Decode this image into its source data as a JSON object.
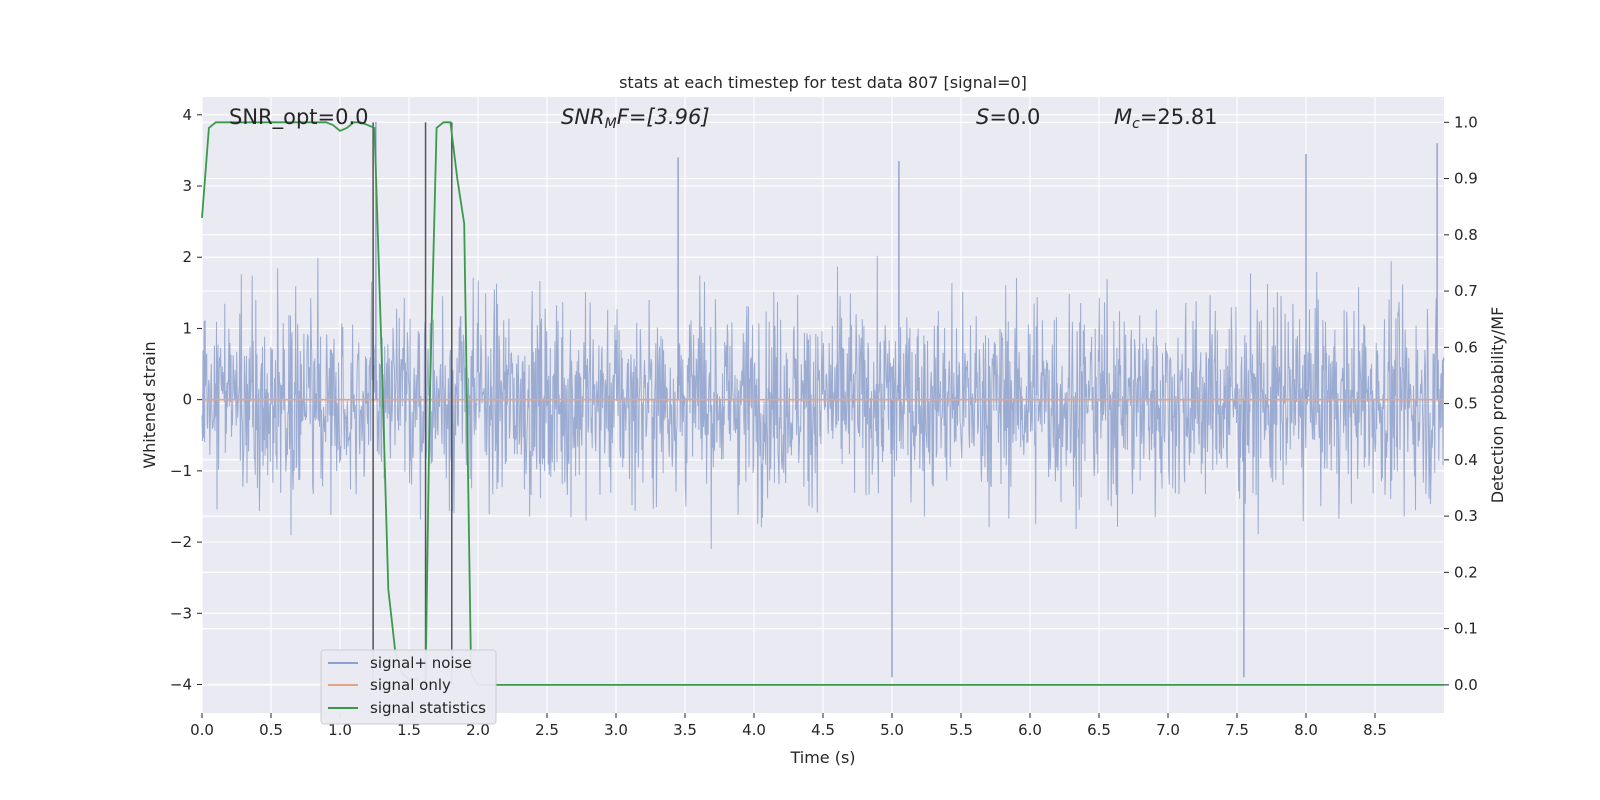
{
  "chart_data": {
    "type": "line",
    "title": "stats at each timestep for test data 807 [signal=0]",
    "xlabel": "Time (s)",
    "ylabel_left": "Whitened strain",
    "ylabel_right": "Detection probability/MF",
    "xlim": [
      0,
      9.0
    ],
    "ylim_left": [
      -4.4,
      4.25
    ],
    "ylim_right": [
      -0.05,
      1.045
    ],
    "x_ticks": [
      0.0,
      0.5,
      1.0,
      1.5,
      2.0,
      2.5,
      3.0,
      3.5,
      4.0,
      4.5,
      5.0,
      5.5,
      6.0,
      6.5,
      7.0,
      7.5,
      8.0,
      8.5
    ],
    "x_tick_labels": [
      "0.0",
      "0.5",
      "1.0",
      "1.5",
      "2.0",
      "2.5",
      "3.0",
      "3.5",
      "4.0",
      "4.5",
      "5.0",
      "5.5",
      "6.0",
      "6.5",
      "7.0",
      "7.5",
      "8.0",
      "8.5"
    ],
    "y_left_ticks": [
      4,
      3,
      2,
      1,
      0,
      -1,
      -2,
      -3,
      -4
    ],
    "y_left_tick_labels": [
      "4",
      "3",
      "2",
      "1",
      "0",
      "−1",
      "−2",
      "−3",
      "−4"
    ],
    "y_right_ticks": [
      1.0,
      0.9,
      0.8,
      0.7,
      0.6,
      0.5,
      0.4,
      0.3,
      0.2,
      0.1,
      0.0
    ],
    "y_right_tick_labels": [
      "1.0",
      "0.9",
      "0.8",
      "0.7",
      "0.6",
      "0.5",
      "0.4",
      "0.3",
      "0.2",
      "0.1",
      "0.0"
    ],
    "grid": true,
    "legend_position": "lower-left",
    "annotations": {
      "snr_opt": "SNR_opt=0.0",
      "snr_mf_sym": "SNR",
      "snr_mf_sub": "M",
      "snr_mf_rest": "F=[3.96]",
      "s_sym": "S",
      "s_rest": "=0.0",
      "mc_sym": "M",
      "mc_sub": "c",
      "mc_rest": "=25.81"
    },
    "series": [
      {
        "name": "signal+ noise",
        "color": "#8da0cb",
        "axis": "left",
        "description_of_values": "noise-like whitened strain, amplitude mostly within ±2.5, peaks near ±3.9",
        "envelope_peaks": [
          {
            "x": 1.26,
            "y": 3.9
          },
          {
            "x": 3.45,
            "y": 3.4
          },
          {
            "x": 5.0,
            "y": -3.9
          },
          {
            "x": 5.05,
            "y": 3.35
          },
          {
            "x": 7.55,
            "y": -3.9
          },
          {
            "x": 8.0,
            "y": 3.45
          },
          {
            "x": 8.95,
            "y": 3.6
          }
        ]
      },
      {
        "name": "signal only",
        "color": "#e5a584",
        "axis": "left",
        "x": [
          0,
          9.0
        ],
        "y": [
          0,
          0
        ]
      },
      {
        "name": "signal statistics",
        "color": "#3a9a4a",
        "axis": "right",
        "x": [
          0,
          0.05,
          0.1,
          0.2,
          0.5,
          0.9,
          0.95,
          1.0,
          1.05,
          1.1,
          1.15,
          1.2,
          1.25,
          1.3,
          1.35,
          1.4,
          1.45,
          1.5,
          1.55,
          1.6,
          1.62,
          1.65,
          1.7,
          1.75,
          1.8,
          1.85,
          1.9,
          1.95,
          2.0,
          2.5,
          3.0,
          4.0,
          5.0,
          6.0,
          7.0,
          8.0,
          9.0
        ],
        "y": [
          0.83,
          0.99,
          1.0,
          1.0,
          1.0,
          1.0,
          0.995,
          0.985,
          0.99,
          1.0,
          1.0,
          0.995,
          0.99,
          0.6,
          0.17,
          0.06,
          0.02,
          0.01,
          0.01,
          0.0,
          0.01,
          0.5,
          0.99,
          1.0,
          1.0,
          0.9,
          0.82,
          0.02,
          0.0,
          0.0,
          0.0,
          0.0,
          0.0,
          0.0,
          0.0,
          0.0,
          0.0
        ]
      }
    ],
    "vertical_markers": [
      1.24,
      1.62,
      1.81
    ],
    "vertical_marker_color": "#555555"
  }
}
